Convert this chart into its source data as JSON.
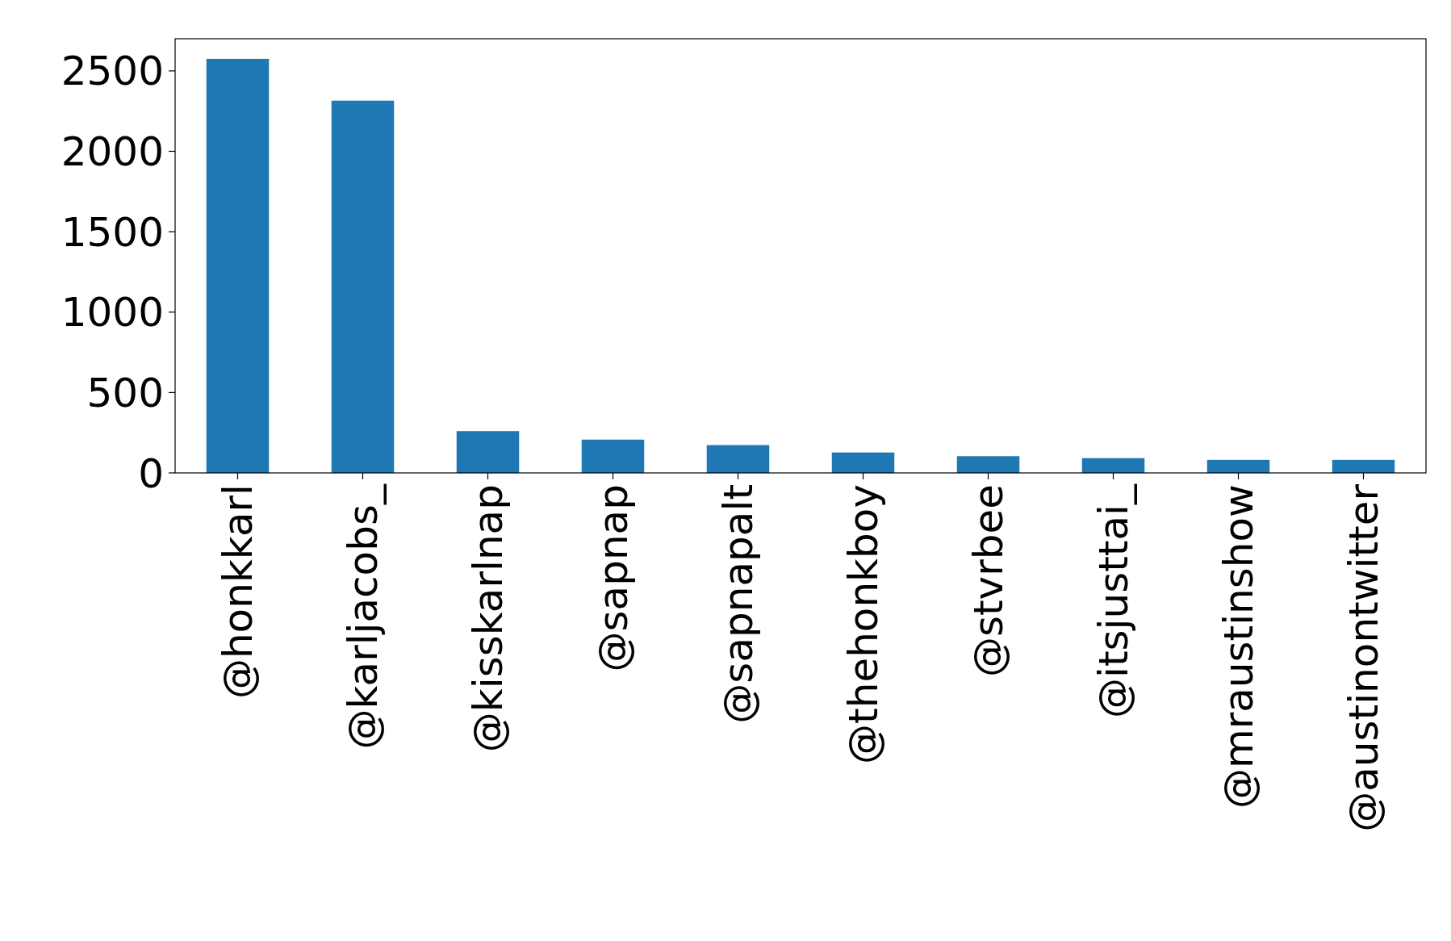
{
  "chart_data": {
    "type": "bar",
    "categories": [
      "@honkkarl",
      "@karljacobs_",
      "@kisskarlnap",
      "@sapnap",
      "@sapnapalt",
      "@thehonkboy",
      "@stvrbee",
      "@itsjusttai_",
      "@mraustinshow",
      "@austinontwitter"
    ],
    "values": [
      2575,
      2315,
      260,
      207,
      173,
      127,
      104,
      92,
      81,
      81
    ],
    "color": "#1f77b4",
    "ylim": [
      0,
      2700
    ],
    "yticks": [
      0,
      500,
      1000,
      1500,
      2000,
      2500
    ],
    "grid": false
  }
}
